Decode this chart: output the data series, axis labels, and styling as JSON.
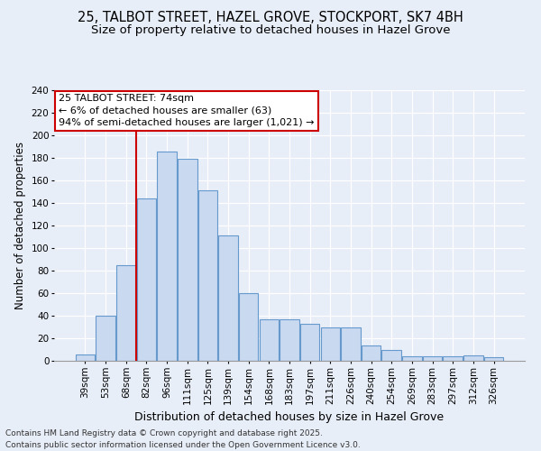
{
  "title_line1": "25, TALBOT STREET, HAZEL GROVE, STOCKPORT, SK7 4BH",
  "title_line2": "Size of property relative to detached houses in Hazel Grove",
  "xlabel": "Distribution of detached houses by size in Hazel Grove",
  "ylabel": "Number of detached properties",
  "categories": [
    "39sqm",
    "53sqm",
    "68sqm",
    "82sqm",
    "96sqm",
    "111sqm",
    "125sqm",
    "139sqm",
    "154sqm",
    "168sqm",
    "183sqm",
    "197sqm",
    "211sqm",
    "226sqm",
    "240sqm",
    "254sqm",
    "269sqm",
    "283sqm",
    "297sqm",
    "312sqm",
    "326sqm"
  ],
  "values": [
    6,
    40,
    85,
    144,
    186,
    179,
    151,
    111,
    60,
    37,
    37,
    33,
    30,
    30,
    14,
    10,
    4,
    4,
    4,
    5,
    3
  ],
  "bar_color": "#c9d9f0",
  "bar_edge_color": "#6699cc",
  "annotation_line1": "25 TALBOT STREET: 74sqm",
  "annotation_line2": "← 6% of detached houses are smaller (63)",
  "annotation_line3": "94% of semi-detached houses are larger (1,021) →",
  "vline_x": 2.5,
  "annotation_box_facecolor": "#ffffff",
  "annotation_box_edgecolor": "#cc0000",
  "vline_color": "#cc0000",
  "ylim": [
    0,
    240
  ],
  "yticks": [
    0,
    20,
    40,
    60,
    80,
    100,
    120,
    140,
    160,
    180,
    200,
    220,
    240
  ],
  "footer_line1": "Contains HM Land Registry data © Crown copyright and database right 2025.",
  "footer_line2": "Contains public sector information licensed under the Open Government Licence v3.0.",
  "background_color": "#e8eef8",
  "grid_color": "#ffffff",
  "title_fontsize": 10.5,
  "subtitle_fontsize": 9.5,
  "ylabel_fontsize": 8.5,
  "xlabel_fontsize": 9,
  "tick_fontsize": 7.5,
  "annotation_fontsize": 8,
  "footer_fontsize": 6.5
}
